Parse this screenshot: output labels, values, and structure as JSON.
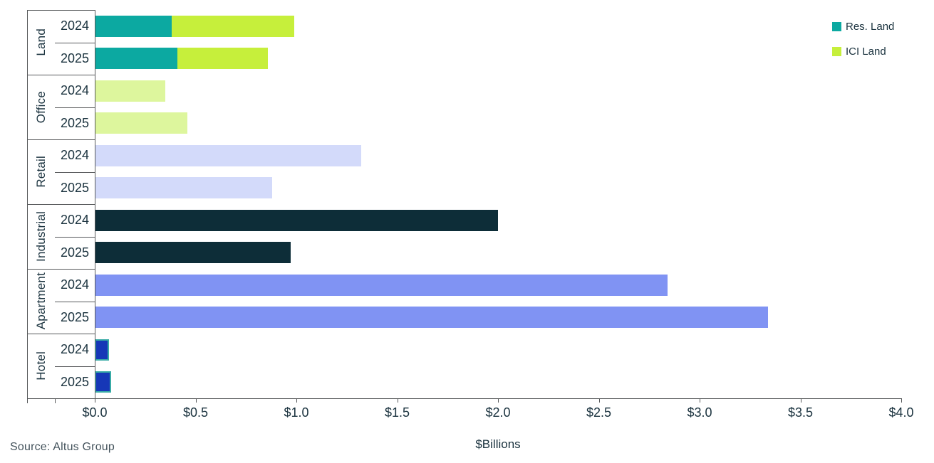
{
  "chart_data": {
    "type": "bar",
    "orientation": "horizontal",
    "title": "",
    "xlabel": "$Billions",
    "source": "Source:  Altus Group",
    "xlim": [
      0.0,
      4.0
    ],
    "grid": false,
    "legend_position": "top-right",
    "palette": {
      "res_land": "#0CA9A1",
      "ici_land": "#C6EF3B",
      "office": "#DDF69D",
      "retail": "#D3DAFA",
      "industrial": "#0D2D38",
      "apartment": "#8093F3",
      "hotel": "#1637B7",
      "hotel_border": "#38ABA6"
    },
    "legend": [
      {
        "label": "Res. Land",
        "color_key": "res_land"
      },
      {
        "label": "ICI Land",
        "color_key": "ici_land"
      }
    ],
    "x_ticks": [
      {
        "label": "$0.0",
        "value": 0.0
      },
      {
        "label": "$0.5",
        "value": 0.5
      },
      {
        "label": "$1.0",
        "value": 1.0
      },
      {
        "label": "$1.5",
        "value": 1.5
      },
      {
        "label": "$2.0",
        "value": 2.0
      },
      {
        "label": "$2.5",
        "value": 2.5
      },
      {
        "label": "$3.0",
        "value": 3.0
      },
      {
        "label": "$3.5",
        "value": 3.5
      },
      {
        "label": "$4.0",
        "value": 4.0
      }
    ],
    "categories": [
      "Land",
      "Office",
      "Retail",
      "Industrial",
      "Apartment",
      "Hotel"
    ],
    "rows": [
      {
        "category": "Land",
        "year": "2024",
        "segments": [
          {
            "series": "Res. Land",
            "value": 0.38,
            "color_key": "res_land"
          },
          {
            "series": "ICI Land",
            "value": 0.61,
            "color_key": "ici_land"
          }
        ]
      },
      {
        "category": "Land",
        "year": "2025",
        "segments": [
          {
            "series": "Res. Land",
            "value": 0.41,
            "color_key": "res_land"
          },
          {
            "series": "ICI Land",
            "value": 0.45,
            "color_key": "ici_land"
          }
        ]
      },
      {
        "category": "Office",
        "year": "2024",
        "segments": [
          {
            "series": "Office",
            "value": 0.35,
            "color_key": "office"
          }
        ]
      },
      {
        "category": "Office",
        "year": "2025",
        "segments": [
          {
            "series": "Office",
            "value": 0.46,
            "color_key": "office"
          }
        ]
      },
      {
        "category": "Retail",
        "year": "2024",
        "segments": [
          {
            "series": "Retail",
            "value": 1.32,
            "color_key": "retail"
          }
        ]
      },
      {
        "category": "Retail",
        "year": "2025",
        "segments": [
          {
            "series": "Retail",
            "value": 0.88,
            "color_key": "retail"
          }
        ]
      },
      {
        "category": "Industrial",
        "year": "2024",
        "segments": [
          {
            "series": "Industrial",
            "value": 2.0,
            "color_key": "industrial"
          }
        ]
      },
      {
        "category": "Industrial",
        "year": "2025",
        "segments": [
          {
            "series": "Industrial",
            "value": 0.97,
            "color_key": "industrial"
          }
        ]
      },
      {
        "category": "Apartment",
        "year": "2024",
        "segments": [
          {
            "series": "Apartment",
            "value": 2.84,
            "color_key": "apartment"
          }
        ]
      },
      {
        "category": "Apartment",
        "year": "2025",
        "segments": [
          {
            "series": "Apartment",
            "value": 3.34,
            "color_key": "apartment"
          }
        ]
      },
      {
        "category": "Hotel",
        "year": "2024",
        "segments": [
          {
            "series": "Hotel",
            "value": 0.07,
            "color_key": "hotel",
            "border_key": "hotel_border"
          }
        ]
      },
      {
        "category": "Hotel",
        "year": "2025",
        "segments": [
          {
            "series": "Hotel",
            "value": 0.08,
            "color_key": "hotel",
            "border_key": "hotel_border"
          }
        ]
      }
    ]
  }
}
